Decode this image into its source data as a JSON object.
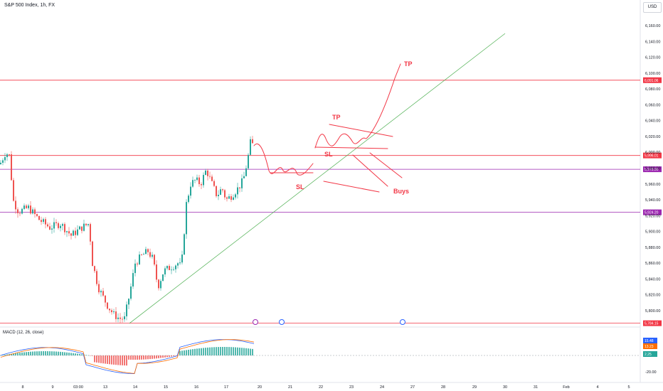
{
  "header": {
    "title": "S&P 500 Index, 1h, FX",
    "currency_button": "USD"
  },
  "macd": {
    "label": "MACD (12, 26, close)"
  },
  "colors": {
    "up": "#26a69a",
    "down": "#ef5350",
    "hline_red": "#f23645",
    "hline_purple": "#9c27b0",
    "trend": "#4caf50",
    "drawing": "#f23645",
    "macd": "#2962ff",
    "signal": "#ff6d00"
  },
  "chart_data": {
    "type": "candlestick",
    "title": "S&P 500 Index, 1h, FX",
    "y_axis": {
      "min": 5775,
      "max": 6178,
      "ticks": [
        "6,160.00",
        "6,140.00",
        "6,120.00",
        "6,100.00",
        "6,080.00",
        "6,060.00",
        "6,040.00",
        "6,020.00",
        "6,000.00",
        "5,980.00",
        "5,960.00",
        "5,940.00",
        "5,920.00",
        "5,900.00",
        "5,880.00",
        "5,860.00",
        "5,840.00",
        "5,820.00",
        "5,800.00"
      ],
      "tick_values": [
        6160,
        6140,
        6120,
        6100,
        6080,
        6060,
        6040,
        6020,
        6000,
        5980,
        5960,
        5940,
        5920,
        5900,
        5880,
        5860,
        5840,
        5820,
        5800
      ]
    },
    "x_axis": {
      "labels": [
        "8",
        "9",
        "03:00",
        "13",
        "14",
        "15",
        "16",
        "17",
        "20",
        "21",
        "22",
        "23",
        "24",
        "27",
        "28",
        "29",
        "30",
        "31",
        "Feb",
        "4",
        "5"
      ]
    },
    "horizontal_levels": [
      {
        "value": 6091.06,
        "label": "6,091.06",
        "color": "#f23645"
      },
      {
        "value": 5996.01,
        "label": "5,996.01",
        "color": "#f23645"
      },
      {
        "value": 5978.56,
        "label": "5,978.56",
        "color": "#9c27b0"
      },
      {
        "value": 5924.2,
        "label": "5,924.20",
        "color": "#9c27b0"
      },
      {
        "value": 5784.15,
        "label": "5,784.15",
        "color": "#f23645"
      }
    ],
    "trend_line": {
      "from": {
        "x": "14",
        "y": 5784
      },
      "to": {
        "x": "30",
        "y": 6150
      }
    },
    "annotations": [
      "TP",
      "TP",
      "SL",
      "SL",
      "Buys"
    ],
    "macd_panel": {
      "label": "MACD (12, 26, close)",
      "ticks": [
        "-20.00"
      ],
      "values": {
        "macd": "15.48",
        "signal": "13.23",
        "histogram": "2.25"
      }
    }
  }
}
